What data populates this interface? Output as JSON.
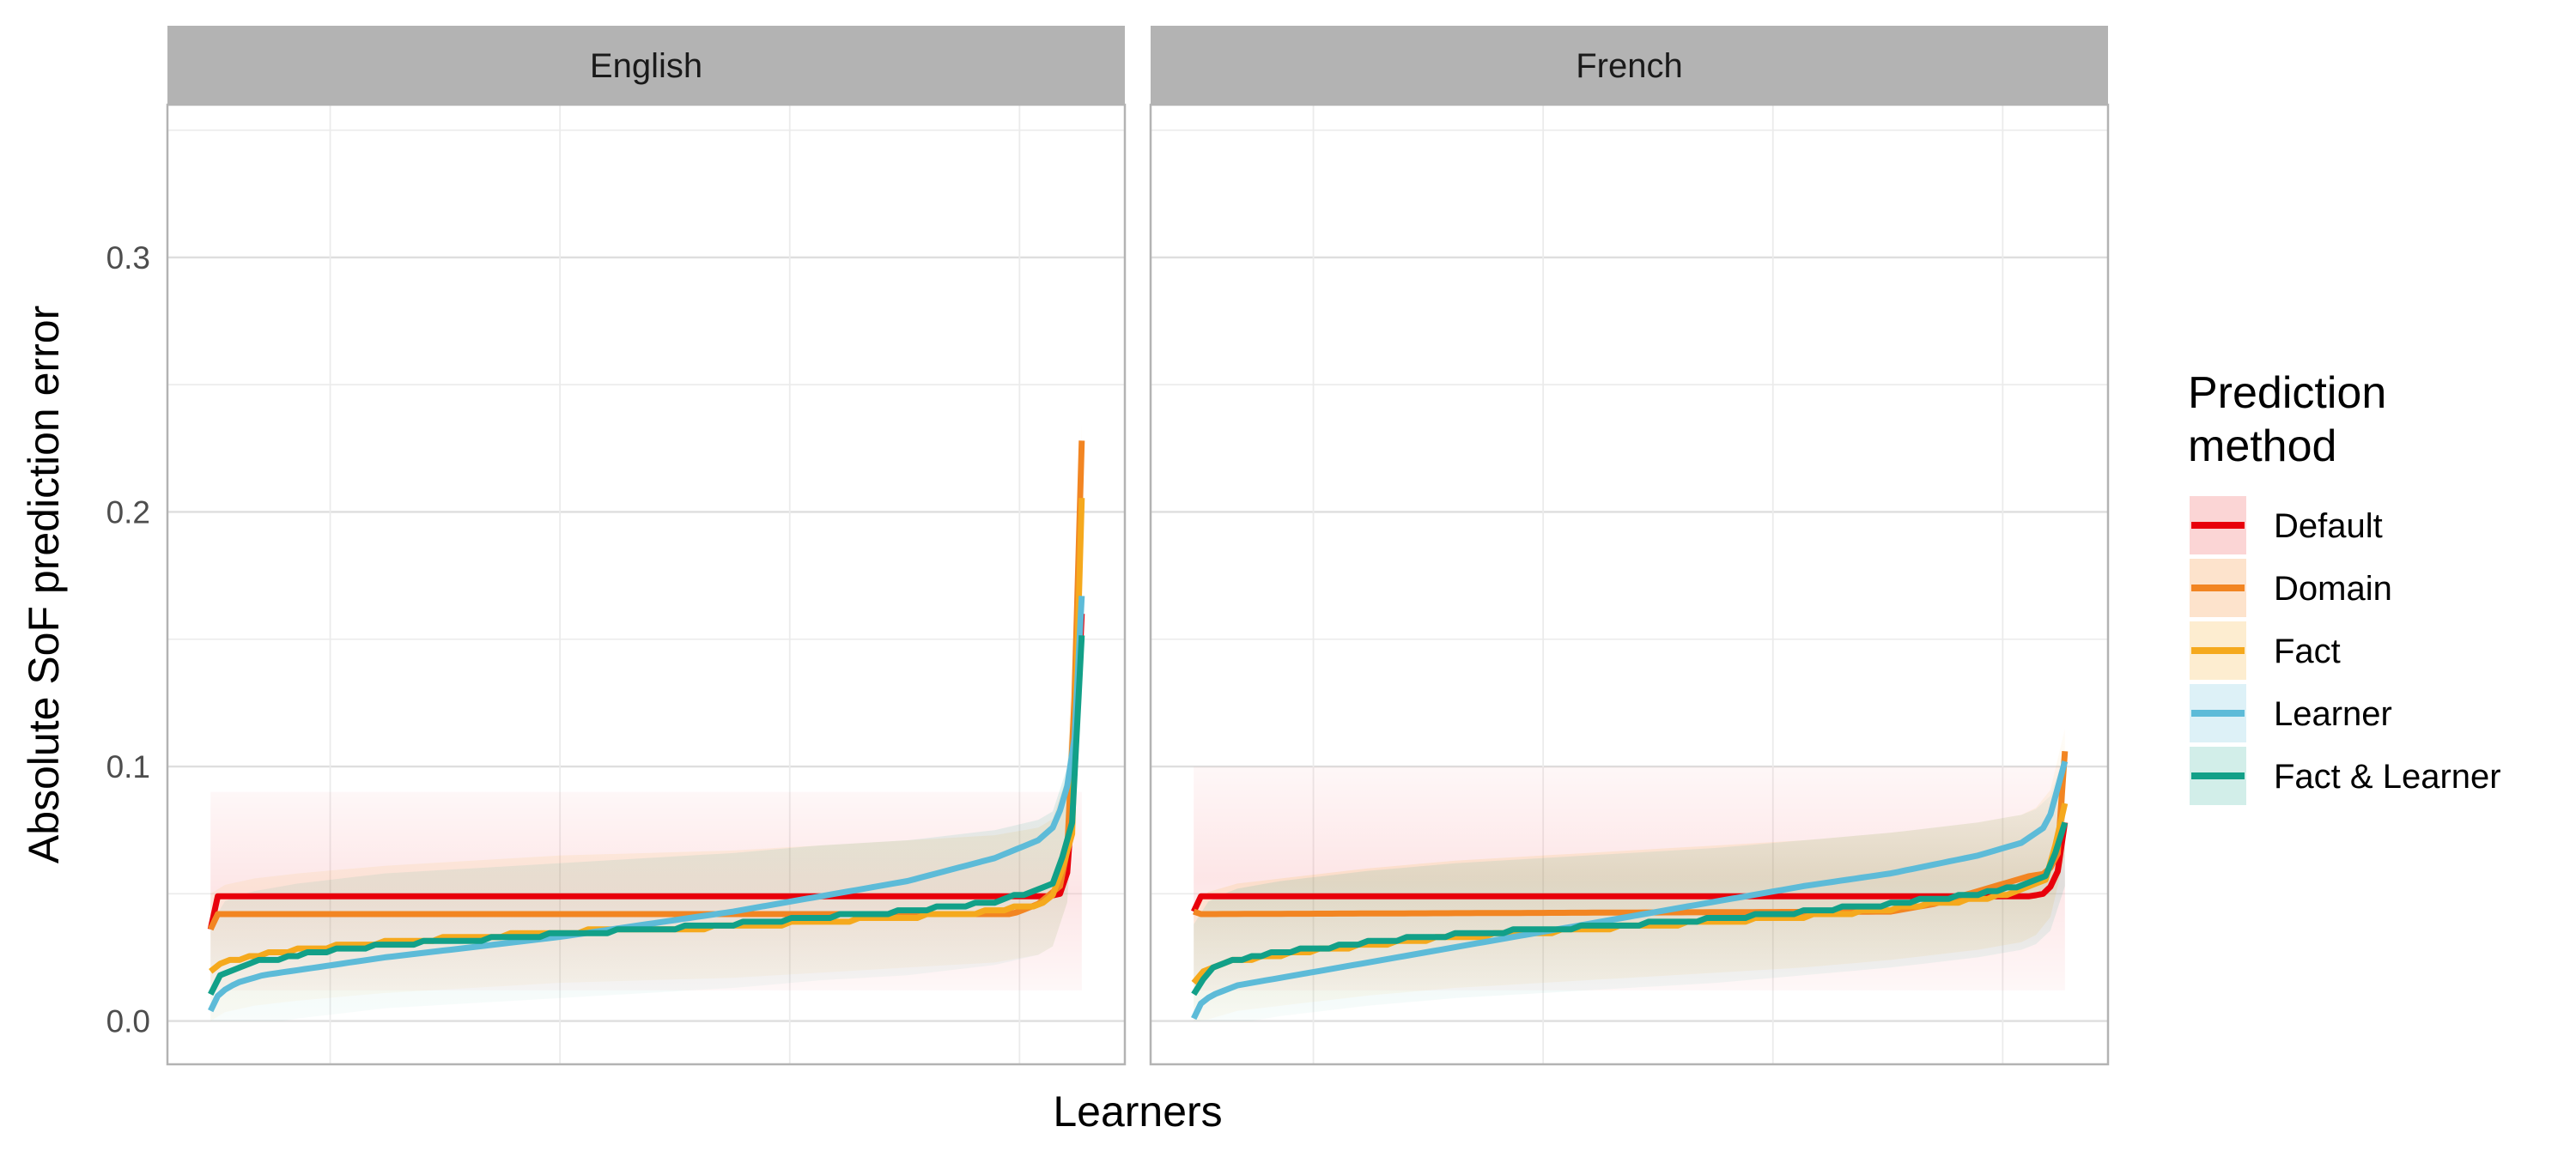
{
  "chart_data": {
    "type": "line",
    "ylabel": "Absolute SoF prediction error",
    "xlabel": "Learners",
    "ylim": [
      -0.017,
      0.36
    ],
    "yticks": [
      0.0,
      0.1,
      0.2,
      0.3
    ],
    "ytick_labels": [
      "0.0",
      "0.1",
      "0.2",
      "0.3"
    ],
    "grid": true,
    "legend": {
      "title": "Prediction method",
      "title_lines": [
        "Prediction",
        "method"
      ],
      "position": "right"
    },
    "series_styles": [
      {
        "name": "Default",
        "color": "#E8000B"
      },
      {
        "name": "Domain",
        "color": "#F28522"
      },
      {
        "name": "Fact",
        "color": "#F5A91D"
      },
      {
        "name": "Learner",
        "color": "#5DBBD8"
      },
      {
        "name": "Fact & Learner",
        "color": "#12A088"
      }
    ],
    "panels": [
      {
        "title": "English",
        "series": [
          {
            "name": "Default",
            "x": [
              0,
              0.005,
              0.955,
              0.962,
              0.975,
              0.985,
              0.992,
              1.0
            ],
            "y": [
              0.036,
              0.049,
              0.049,
              0.049,
              0.05,
              0.06,
              0.1,
              0.16
            ]
          },
          {
            "name": "Domain",
            "x": [
              0,
              0.005,
              0.9,
              0.92,
              0.95,
              0.975,
              0.985,
              0.992,
              1.0
            ],
            "y": [
              0.036,
              0.042,
              0.042,
              0.042,
              0.046,
              0.053,
              0.07,
              0.13,
              0.228
            ]
          },
          {
            "name": "Fact",
            "x": [
              0,
              0.01,
              0.05,
              0.1,
              0.2,
              0.3,
              0.4,
              0.5,
              0.6,
              0.7,
              0.8,
              0.9,
              0.95,
              0.97,
              0.99,
              1.0
            ],
            "y": [
              0.02,
              0.023,
              0.026,
              0.028,
              0.031,
              0.033,
              0.035,
              0.036,
              0.037,
              0.039,
              0.041,
              0.043,
              0.046,
              0.05,
              0.075,
              0.205
            ]
          },
          {
            "name": "Learner",
            "x": [
              0,
              0.01,
              0.03,
              0.06,
              0.1,
              0.2,
              0.3,
              0.4,
              0.5,
              0.6,
              0.7,
              0.8,
              0.9,
              0.95,
              0.97,
              0.99,
              1.0
            ],
            "y": [
              0.004,
              0.011,
              0.015,
              0.018,
              0.02,
              0.025,
              0.029,
              0.033,
              0.038,
              0.043,
              0.049,
              0.055,
              0.064,
              0.071,
              0.077,
              0.1,
              0.167
            ]
          },
          {
            "name": "Fact & Learner",
            "x": [
              0,
              0.005,
              0.02,
              0.05,
              0.1,
              0.2,
              0.3,
              0.4,
              0.5,
              0.6,
              0.7,
              0.8,
              0.9,
              0.95,
              0.97,
              0.99,
              1.0
            ],
            "y": [
              0.01,
              0.016,
              0.02,
              0.023,
              0.026,
              0.03,
              0.032,
              0.034,
              0.036,
              0.038,
              0.041,
              0.043,
              0.047,
              0.051,
              0.055,
              0.08,
              0.152
            ]
          }
        ]
      },
      {
        "title": "French",
        "series": [
          {
            "name": "Default",
            "x": [
              0,
              0.005,
              0.96,
              0.975,
              0.99,
              1.0
            ],
            "y": [
              0.043,
              0.049,
              0.049,
              0.05,
              0.055,
              0.078
            ]
          },
          {
            "name": "Domain",
            "x": [
              0,
              0.005,
              0.8,
              0.85,
              0.9,
              0.96,
              0.98,
              0.995,
              1.0
            ],
            "y": [
              0.043,
              0.042,
              0.043,
              0.046,
              0.051,
              0.057,
              0.058,
              0.068,
              0.106
            ]
          },
          {
            "name": "Fact",
            "x": [
              0,
              0.01,
              0.05,
              0.1,
              0.2,
              0.3,
              0.4,
              0.5,
              0.6,
              0.7,
              0.8,
              0.9,
              0.95,
              0.98,
              1.0
            ],
            "y": [
              0.015,
              0.02,
              0.024,
              0.026,
              0.03,
              0.033,
              0.035,
              0.037,
              0.039,
              0.041,
              0.044,
              0.048,
              0.051,
              0.056,
              0.085
            ]
          },
          {
            "name": "Learner",
            "x": [
              0,
              0.005,
              0.02,
              0.05,
              0.1,
              0.2,
              0.3,
              0.4,
              0.5,
              0.6,
              0.7,
              0.8,
              0.9,
              0.95,
              0.98,
              1.0
            ],
            "y": [
              0.001,
              0.006,
              0.01,
              0.014,
              0.017,
              0.023,
              0.029,
              0.035,
              0.041,
              0.047,
              0.053,
              0.058,
              0.065,
              0.07,
              0.077,
              0.102
            ]
          },
          {
            "name": "Fact & Learner",
            "x": [
              0,
              0.005,
              0.02,
              0.05,
              0.1,
              0.2,
              0.3,
              0.4,
              0.5,
              0.6,
              0.7,
              0.8,
              0.9,
              0.95,
              0.98,
              1.0
            ],
            "y": [
              0.01,
              0.015,
              0.02,
              0.024,
              0.027,
              0.031,
              0.034,
              0.036,
              0.038,
              0.04,
              0.043,
              0.046,
              0.05,
              0.053,
              0.057,
              0.078
            ]
          }
        ]
      }
    ]
  }
}
